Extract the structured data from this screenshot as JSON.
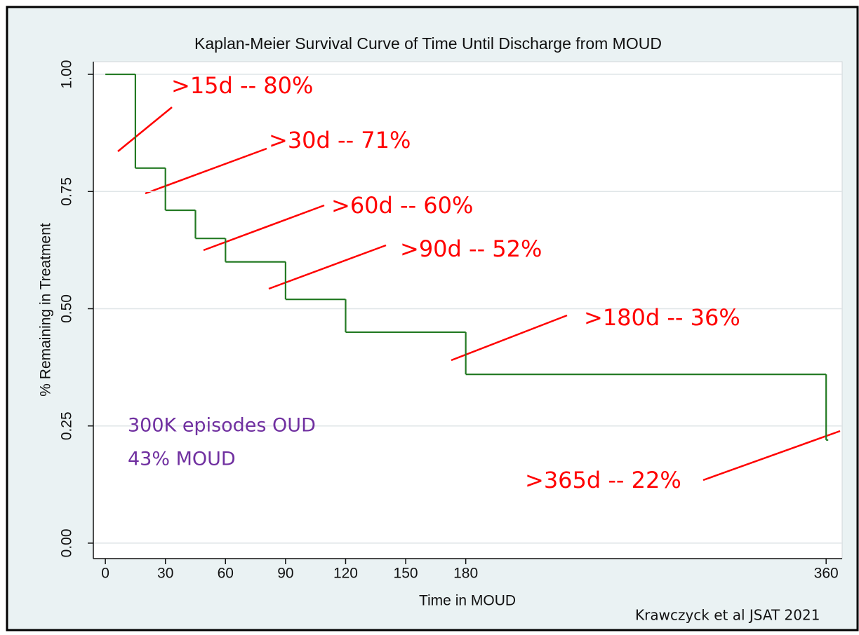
{
  "chart_data": {
    "type": "step",
    "title": "Kaplan-Meier Survival Curve of Time Until Discharge from MOUD",
    "xlabel": "Time in MOUD",
    "ylabel": "% Remaining in Treatment",
    "step": "post",
    "series": [
      {
        "name": null,
        "color": "#237a23",
        "x": [
          0,
          15,
          30,
          45,
          60,
          90,
          120,
          180,
          360
        ],
        "values": [
          1.0,
          0.8,
          0.71,
          0.65,
          0.6,
          0.52,
          0.45,
          0.36,
          0.22
        ]
      }
    ],
    "xlim": [
      -6,
      368
    ],
    "xticks": [
      0,
      30,
      60,
      90,
      120,
      150,
      180,
      360
    ],
    "ylim": [
      -0.033,
      1.027
    ],
    "yticks": [
      {
        "value": 0,
        "label": "0.00"
      },
      0.25,
      {
        "value": 0.5,
        "label": "0.50"
      },
      0.75,
      {
        "value": 1,
        "label": "1.00"
      }
    ],
    "grid": true,
    "annotations": [
      ">15d -- 80%",
      ">30d -- 71%",
      ">60d -- 60%",
      ">90d -- 52%",
      ">180d -- 36%",
      ">365d -- 22%"
    ],
    "notes": [
      "300K episodes OUD",
      "43% MOUD"
    ],
    "source": "Krawczyck et al JSAT 2021"
  }
}
